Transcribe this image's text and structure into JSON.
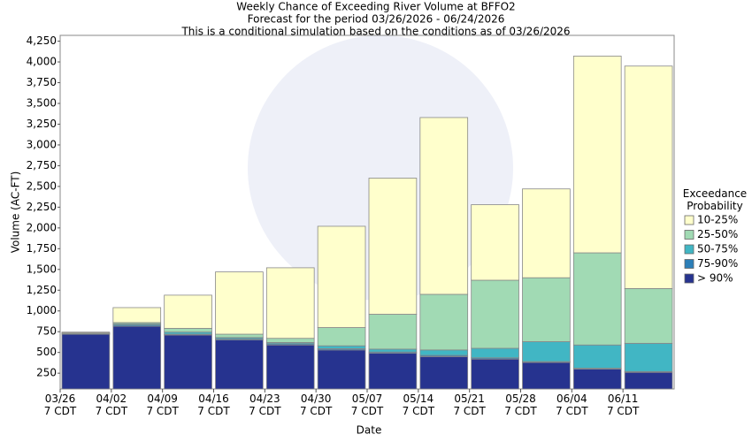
{
  "chart_data": {
    "type": "floating_bar",
    "title": "Weekly Chance of Exceeding River Volume at BFFO2",
    "subtitle": "Forecast for the period 03/26/2026 - 06/24/2026",
    "subtitle2": "This is a conditional simulation based on the conditions as of 03/26/2026",
    "x_label": "Date",
    "y_label": "Volume (AC-FT)",
    "legend_title": "Exceedance\nProbability",
    "categories": [
      "03/26\n7 CDT",
      "04/02\n7 CDT",
      "04/09\n7 CDT",
      "04/16\n7 CDT",
      "04/23\n7 CDT",
      "04/30\n7 CDT",
      "05/07\n7 CDT",
      "05/14\n7 CDT",
      "05/21\n7 CDT",
      "05/28\n7 CDT",
      "06/04\n7 CDT",
      "06/11\n7 CDT"
    ],
    "series": [
      {
        "name": "> 90%",
        "color": "#26338f",
        "values": [
          719,
          815,
          710,
          650,
          590,
          530,
          490,
          450,
          420,
          380,
          300,
          260
        ]
      },
      {
        "name": "75-90%",
        "color": "#2c7fb8",
        "values": [
          722,
          830,
          720,
          665,
          605,
          545,
          505,
          465,
          435,
          390,
          310,
          270
        ]
      },
      {
        "name": "50-75%",
        "color": "#41b6c4",
        "values": [
          725,
          845,
          745,
          680,
          620,
          580,
          540,
          530,
          550,
          630,
          590,
          610
        ]
      },
      {
        "name": "25-50%",
        "color": "#a1dab4",
        "values": [
          735,
          860,
          790,
          720,
          670,
          800,
          960,
          1200,
          1370,
          1400,
          1700,
          1270
        ]
      },
      {
        "name": "10-25%",
        "color": "#ffffcc",
        "values": [
          745,
          1040,
          1190,
          1470,
          1520,
          2020,
          2600,
          3330,
          2280,
          2470,
          4070,
          3950
        ]
      }
    ],
    "ylim": [
      60,
      4320
    ],
    "yticks": [
      250,
      500,
      750,
      {
        "value": 1000,
        "label": "1,000"
      },
      {
        "value": 1250,
        "label": "1,250"
      },
      {
        "value": 1500,
        "label": "1,500"
      },
      {
        "value": 1750,
        "label": "1,750"
      },
      {
        "value": 2000,
        "label": "2,000"
      },
      {
        "value": 2250,
        "label": "2,250"
      },
      {
        "value": 2500,
        "label": "2,500"
      },
      {
        "value": 2750,
        "label": "2,750"
      },
      {
        "value": 3000,
        "label": "3,000"
      },
      {
        "value": 3250,
        "label": "3,250"
      },
      {
        "value": 3500,
        "label": "3,500"
      },
      {
        "value": 3750,
        "label": "3,750"
      },
      {
        "value": 4000,
        "label": "4,000"
      },
      {
        "value": 4250,
        "label": "4,250"
      }
    ],
    "grid": false
  }
}
